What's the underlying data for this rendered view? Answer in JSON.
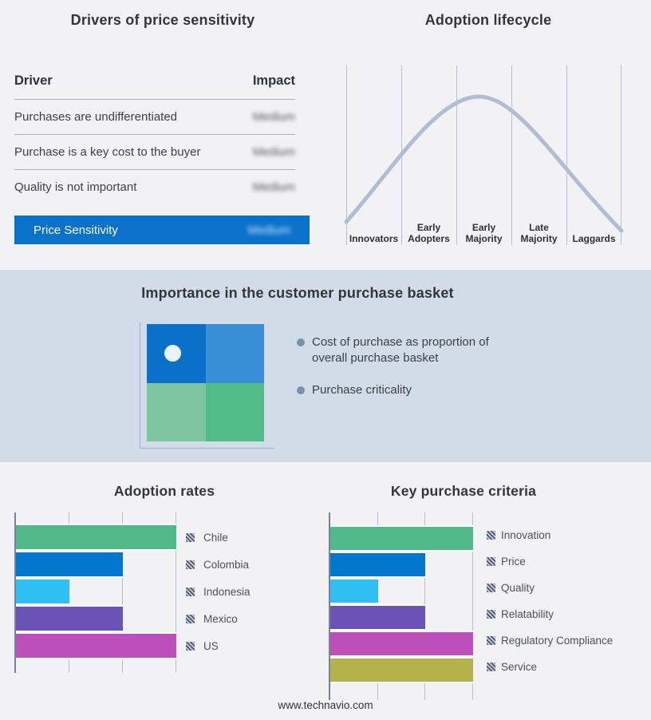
{
  "page": {
    "background": "#f2f2f4",
    "band_background": "#d2dce8",
    "footer": "www.technavio.com"
  },
  "drivers_panel": {
    "title": "Drivers of price sensitivity",
    "columns": {
      "driver": "Driver",
      "impact": "Impact"
    },
    "rows": [
      {
        "driver": "Purchases are undifferentiated",
        "impact": "Medium"
      },
      {
        "driver": "Purchase is a key cost to the buyer",
        "impact": "Medium"
      },
      {
        "driver": "Quality is not important",
        "impact": "Medium"
      }
    ],
    "highlight_row": {
      "label": "Price Sensitivity",
      "impact": "Medium"
    },
    "accent_color": "#0b72cb"
  },
  "lifecycle_panel": {
    "title": "Adoption lifecycle",
    "stages": [
      "Innovators",
      "Early Adopters",
      "Early Majority",
      "Late Majority",
      "Laggards"
    ],
    "curve_color": "#b0bed3"
  },
  "basket_panel": {
    "title": "Importance in the customer purchase basket",
    "bullets": [
      "Cost of purchase as proportion of overall purchase basket",
      "Purchase criticality"
    ],
    "quadrant_colors": [
      "#0b70c8",
      "#398ed6",
      "#7dc4a0",
      "#52bb88"
    ],
    "dot_color": "#e9f3fa"
  },
  "chart_data": [
    {
      "type": "line",
      "title": "Adoption lifecycle",
      "x_categories": [
        "Innovators",
        "Early Adopters",
        "Early Majority",
        "Late Majority",
        "Laggards"
      ],
      "points_normalized": [
        [
          0.0,
          0.13
        ],
        [
          0.2,
          0.45
        ],
        [
          0.35,
          0.78
        ],
        [
          0.475,
          1.0
        ],
        [
          0.6,
          0.82
        ],
        [
          0.8,
          0.42
        ],
        [
          1.0,
          0.08
        ]
      ],
      "ylabel": "",
      "xlabel": "",
      "grid": "vertical-only",
      "legend": "none",
      "curve_shape": "bell"
    },
    {
      "type": "bar",
      "orientation": "horizontal",
      "title": "Adoption rates",
      "categories": [
        "Chile",
        "Colombia",
        "Indonesia",
        "Mexico",
        "US"
      ],
      "values": [
        3,
        2,
        1,
        2,
        3
      ],
      "xlim": [
        0,
        3
      ],
      "gridlines": 3,
      "colors": [
        "#52ba8a",
        "#0376cd",
        "#2fbff5",
        "#6b53b5",
        "#bc4fba"
      ],
      "legend_position": "right"
    },
    {
      "type": "bar",
      "orientation": "horizontal",
      "title": "Key purchase criteria",
      "categories": [
        "Innovation",
        "Price",
        "Quality",
        "Relatability",
        "Regulatory Compliance",
        "Service"
      ],
      "values": [
        3,
        2,
        1,
        2,
        3,
        3
      ],
      "xlim": [
        0,
        3
      ],
      "gridlines": 3,
      "colors": [
        "#52ba8a",
        "#0376cd",
        "#2fbff5",
        "#6b53b5",
        "#bc4fba",
        "#b4b34b"
      ],
      "legend_position": "right"
    }
  ]
}
